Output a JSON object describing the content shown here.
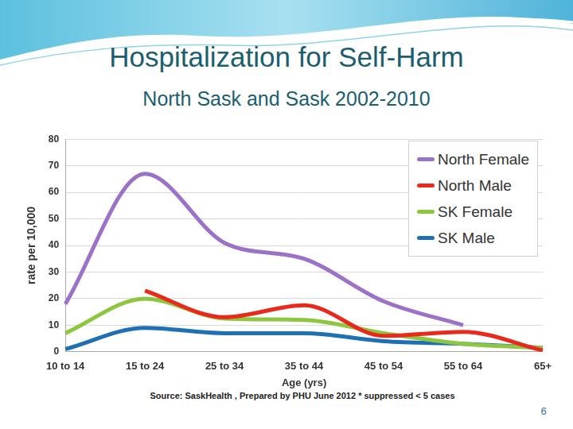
{
  "chart_data": {
    "type": "line",
    "title": "Hospitalization for Self-Harm",
    "subtitle": "North Sask and Sask 2002-2010",
    "x_label": "Age (yrs)",
    "y_label": "rate per 10,000",
    "categories": [
      "10 to 14",
      "15 to 24",
      "25 to 34",
      "35 to 44",
      "45 to 54",
      "55 to 64",
      "65+"
    ],
    "series": [
      {
        "name": "North Female",
        "color": "#9b72c8",
        "values": [
          18,
          67,
          41,
          35,
          19,
          10,
          null
        ]
      },
      {
        "name": "North Male",
        "color": "#e8291c",
        "values": [
          null,
          23,
          13,
          17.5,
          6,
          7.5,
          0.5
        ]
      },
      {
        "name": "SK Female",
        "color": "#8dc63f",
        "values": [
          7,
          20,
          12.5,
          12,
          7,
          3,
          1.5
        ]
      },
      {
        "name": "SK Male",
        "color": "#1f6fb5",
        "values": [
          1,
          9,
          7,
          7,
          4,
          3,
          1.5
        ]
      }
    ],
    "ylim": [
      0,
      80
    ],
    "yticks": [
      0,
      10,
      20,
      30,
      40,
      50,
      60,
      70,
      80
    ],
    "grid": true,
    "legend": "upper right",
    "source": "Source: SaskHealth , Prepared by PHU June 2012 * suppressed < 5 cases",
    "page_number": "6"
  }
}
